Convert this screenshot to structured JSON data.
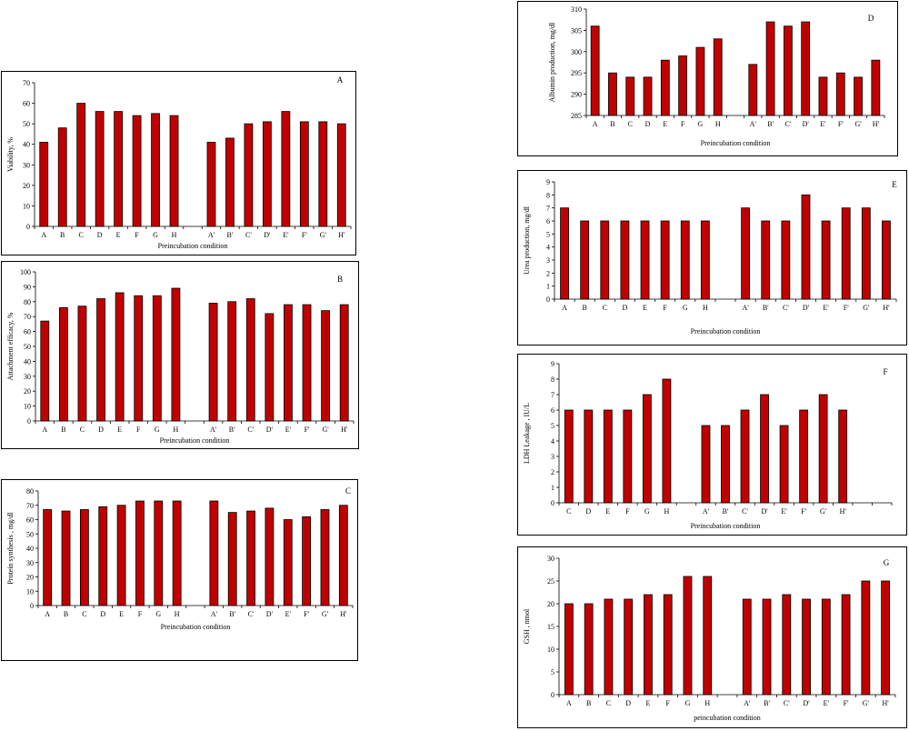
{
  "colors": {
    "bar": "#c00000",
    "bar_edge": "#000000"
  },
  "chart_data": [
    {
      "id": "A",
      "type": "bar",
      "panel_label": "A",
      "ylabel": "Viability, %",
      "xlabel": "Preincubation condition",
      "ylim": [
        0,
        70
      ],
      "ystep": 10,
      "categories": [
        "A",
        "B",
        "C",
        "D",
        "E",
        "F",
        "G",
        "H",
        "",
        "A'",
        "B'",
        "C'",
        "D'",
        "E'",
        "F'",
        "G'",
        "H'"
      ],
      "values": [
        41,
        48,
        60,
        56,
        56,
        54,
        55,
        54,
        null,
        41,
        43,
        50,
        51,
        56,
        51,
        51,
        50
      ],
      "grid": false
    },
    {
      "id": "B",
      "type": "bar",
      "panel_label": "B",
      "ylabel": "Attachment efficacy, %",
      "xlabel": "Preincubation condition",
      "ylim": [
        0,
        100
      ],
      "ystep": 10,
      "categories": [
        "A",
        "B",
        "C",
        "D",
        "E",
        "F",
        "G",
        "H",
        "",
        "A'",
        "B'",
        "C'",
        "D'",
        "E'",
        "F'",
        "G'",
        "H'"
      ],
      "values": [
        67,
        76,
        77,
        82,
        86,
        84,
        84,
        89,
        null,
        79,
        80,
        82,
        72,
        78,
        78,
        74,
        78
      ],
      "grid": false
    },
    {
      "id": "C",
      "type": "bar",
      "panel_label": "C",
      "ylabel": "Protein synthesis , mg/dl",
      "xlabel": "Preincubation condition",
      "ylim": [
        0,
        80
      ],
      "ystep": 10,
      "categories": [
        "A",
        "B",
        "C",
        "D",
        "E",
        "F",
        "G",
        "H",
        "",
        "A'",
        "B'",
        "C'",
        "D'",
        "E'",
        "F'",
        "G'",
        "H'"
      ],
      "values": [
        67,
        66,
        67,
        69,
        70,
        73,
        73,
        73,
        null,
        73,
        65,
        66,
        68,
        60,
        62,
        67,
        70
      ],
      "grid": false
    },
    {
      "id": "D",
      "type": "bar",
      "panel_label": "D",
      "ylabel": "Albumin production, mg/dl",
      "xlabel": "Preincubation condition",
      "ylim": [
        285,
        310
      ],
      "ystep": 5,
      "categories": [
        "A",
        "B",
        "C",
        "D",
        "E",
        "F",
        "G",
        "H",
        "",
        "A'",
        "B'",
        "C'",
        "D'",
        "E'",
        "F'",
        "G'",
        "H'"
      ],
      "values": [
        306,
        295,
        294,
        294,
        298,
        299,
        301,
        303,
        null,
        297,
        307,
        306,
        307,
        294,
        295,
        294,
        298
      ],
      "grid": false
    },
    {
      "id": "E",
      "type": "bar",
      "panel_label": "E",
      "ylabel": "Urea production, mg/dl",
      "xlabel": "Preincubation condition",
      "ylim": [
        0,
        9
      ],
      "ystep": 1,
      "categories": [
        "A",
        "B",
        "C",
        "D",
        "E",
        "F",
        "G",
        "H",
        "",
        "A'",
        "B'",
        "C'",
        "D'",
        "E'",
        "F'",
        "G'",
        "H'"
      ],
      "values": [
        7,
        6,
        6,
        6,
        6,
        6,
        6,
        6,
        null,
        7,
        6,
        6,
        8,
        6,
        7,
        7,
        6
      ],
      "grid": false
    },
    {
      "id": "F",
      "type": "bar",
      "panel_label": "F",
      "ylabel": "LDH Leakage , IU/L",
      "xlabel": "Preincubation condition",
      "ylim": [
        0,
        9
      ],
      "ystep": 1,
      "categories": [
        "C",
        "D",
        "E",
        "F",
        "G",
        "H",
        "",
        "A'",
        "B'",
        "C'",
        "D'",
        "E'",
        "F'",
        "G'",
        "H'",
        "",
        ""
      ],
      "values": [
        6,
        6,
        6,
        6,
        7,
        8,
        null,
        5,
        5,
        6,
        7,
        5,
        6,
        7,
        6,
        null,
        null
      ],
      "grid": false
    },
    {
      "id": "G",
      "type": "bar",
      "panel_label": "G",
      "ylabel": "GSH , nmol",
      "xlabel": "peincubation condition",
      "ylim": [
        0,
        30
      ],
      "ystep": 5,
      "categories": [
        "A",
        "B",
        "C",
        "D",
        "E",
        "F",
        "G",
        "H",
        "",
        "A'",
        "B'",
        "C'",
        "D'",
        "E'",
        "F'",
        "G'",
        "H'"
      ],
      "values": [
        20,
        20,
        21,
        21,
        22,
        22,
        26,
        26,
        null,
        21,
        21,
        22,
        21,
        21,
        22,
        25,
        25
      ],
      "grid": false
    }
  ]
}
